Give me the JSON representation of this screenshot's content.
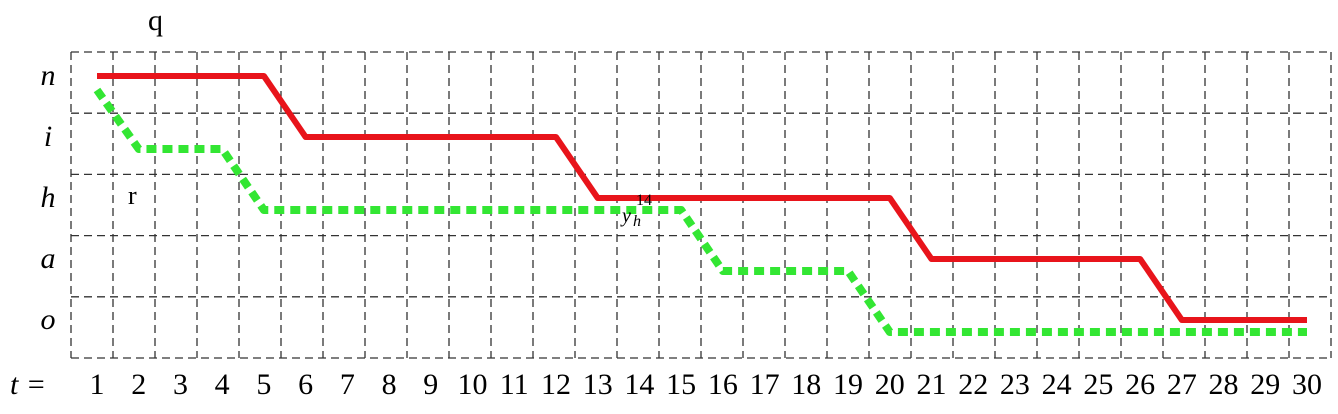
{
  "figure": {
    "top_label": "q",
    "inner_label": "r",
    "annotation": {
      "base": "y",
      "sub": "h",
      "sup": "14"
    },
    "x_axis_prefix": "t =",
    "x_ticks": [
      1,
      2,
      3,
      4,
      5,
      6,
      7,
      8,
      9,
      10,
      11,
      12,
      13,
      14,
      15,
      16,
      17,
      18,
      19,
      20,
      21,
      22,
      23,
      24,
      25,
      26,
      27,
      28,
      29,
      30
    ],
    "y_levels": [
      "n",
      "i",
      "h",
      "a",
      "o"
    ],
    "colors": {
      "red_path": "#e8141b",
      "green_path": "#33e633",
      "grid": "#333333"
    }
  },
  "chart_data": {
    "type": "line",
    "x": [
      1,
      2,
      3,
      4,
      5,
      6,
      7,
      8,
      9,
      10,
      11,
      12,
      13,
      14,
      15,
      16,
      17,
      18,
      19,
      20,
      21,
      22,
      23,
      24,
      25,
      26,
      27,
      28,
      29,
      30
    ],
    "y_categories": [
      "n",
      "i",
      "h",
      "a",
      "o"
    ],
    "series": [
      {
        "style": "solid",
        "color": "#e8141b",
        "points": [
          [
            1,
            "n"
          ],
          [
            5,
            "n"
          ],
          [
            6,
            "i"
          ],
          [
            12,
            "i"
          ],
          [
            13,
            "h"
          ],
          [
            20,
            "h"
          ],
          [
            21,
            "a"
          ],
          [
            26,
            "a"
          ],
          [
            27,
            "o"
          ],
          [
            30,
            "o"
          ]
        ]
      },
      {
        "style": "dashed",
        "color": "#33e633",
        "points": [
          [
            1,
            "n"
          ],
          [
            2,
            "i"
          ],
          [
            4,
            "i"
          ],
          [
            5,
            "h"
          ],
          [
            15,
            "h"
          ],
          [
            16,
            "a"
          ],
          [
            19,
            "a"
          ],
          [
            20,
            "o"
          ],
          [
            30,
            "o"
          ]
        ]
      }
    ],
    "annotations": [
      {
        "text": "y_h^14",
        "x": 14,
        "y": "h"
      }
    ],
    "grid": true
  }
}
